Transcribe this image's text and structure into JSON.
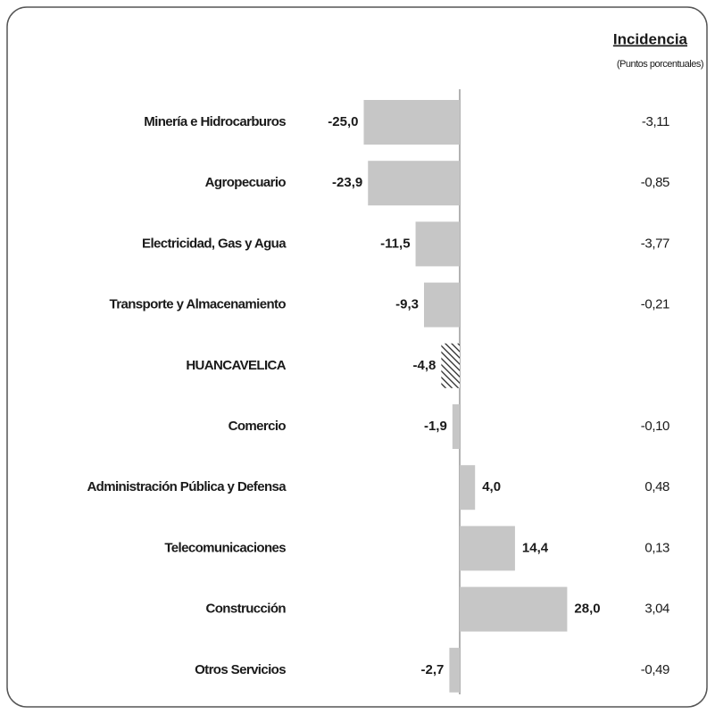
{
  "chart_data": {
    "type": "bar",
    "orientation": "horizontal",
    "categories": [
      "Minería e Hidrocarburos",
      "Agropecuario",
      "Electricidad, Gas y Agua",
      "Transporte y Almacenamiento",
      "HUANCAVELICA",
      "Comercio",
      "Administración Pública y Defensa",
      "Telecomunicaciones",
      "Construcción",
      "Otros Servicios"
    ],
    "values": [
      -25.0,
      -23.9,
      -11.5,
      -9.3,
      -4.8,
      -1.9,
      4.0,
      14.4,
      28.0,
      -2.7
    ],
    "value_labels": [
      "-25,0",
      "-23,9",
      "-11,5",
      "-9,3",
      "-4,8",
      "-1,9",
      "4,0",
      "14,4",
      "28,0",
      "-2,7"
    ],
    "color": "#c6c6c6",
    "highlight": "HUANCAVELICA",
    "incidence": {
      "title": "Incidencia",
      "subtitle": "(Puntos porcentuales)",
      "values": [
        -3.11,
        -0.85,
        -3.77,
        -0.21,
        null,
        -0.1,
        0.48,
        0.13,
        3.04,
        -0.49
      ],
      "value_labels": [
        "-3,11",
        "-0,85",
        "-3,77",
        "-0,21",
        null,
        "-0,10",
        "0,48",
        "0,13",
        "3,04",
        "-0,49"
      ]
    }
  }
}
